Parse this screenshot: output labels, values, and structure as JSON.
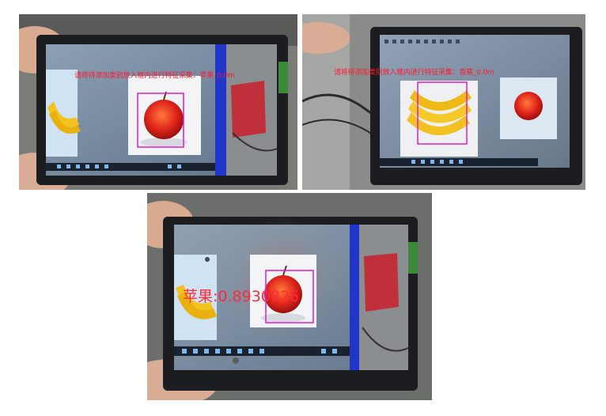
{
  "photos": [
    {
      "id": "top-left",
      "overlay_text": "请将待添加类别放入框内进行特征采集：苹果_0.0m",
      "objects": [
        "banana",
        "apple"
      ],
      "colors": {
        "overlay": "#ff1a2e",
        "box": "#e11ad0"
      }
    },
    {
      "id": "top-right",
      "overlay_text": "请将待添加类别放入框内进行特征采集：香蕉_0.0m",
      "objects": [
        "banana",
        "apple"
      ],
      "colors": {
        "overlay": "#ff1a2e",
        "box": "#e11ad0"
      }
    },
    {
      "id": "bottom",
      "overlay_text": "苹果:0.8930826",
      "objects": [
        "banana",
        "apple"
      ],
      "colors": {
        "overlay": "#ff2a3a",
        "box": "#e11ad0"
      }
    }
  ]
}
